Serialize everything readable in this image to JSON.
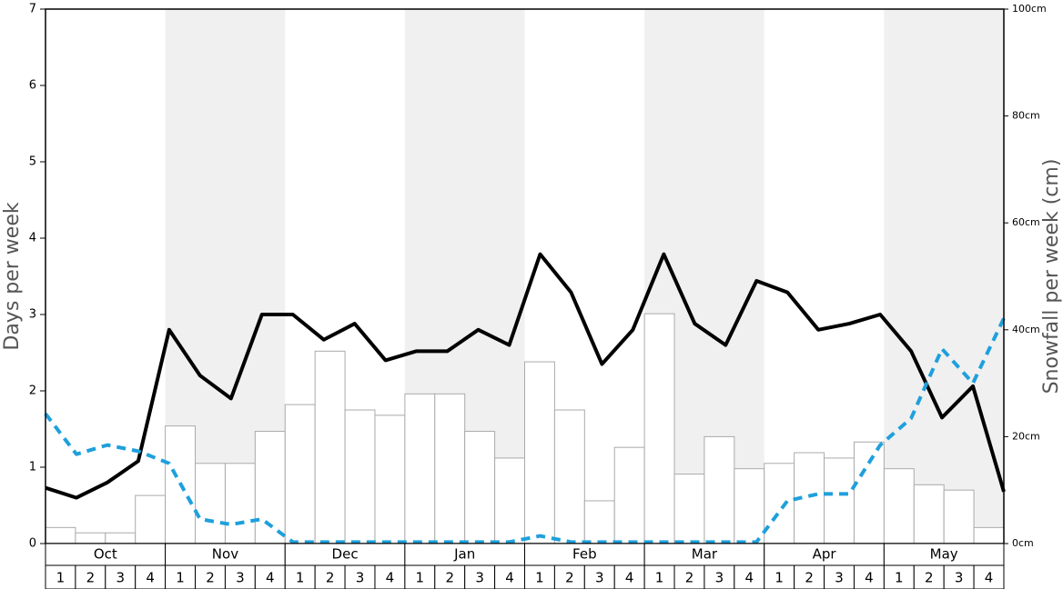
{
  "chart_data": {
    "type": "bar",
    "ylabel": "Days per week",
    "y2label": "Snowfall per week (cm)",
    "months": [
      "Oct",
      "Nov",
      "Dec",
      "Jan",
      "Feb",
      "Mar",
      "Apr",
      "May"
    ],
    "categories": [
      "1",
      "2",
      "3",
      "4",
      "1",
      "2",
      "3",
      "4",
      "1",
      "2",
      "3",
      "4",
      "1",
      "2",
      "3",
      "4",
      "1",
      "2",
      "3",
      "4",
      "1",
      "2",
      "3",
      "4",
      "1",
      "2",
      "3",
      "4",
      "1",
      "2",
      "3",
      "4"
    ],
    "ylim": [
      0,
      7
    ],
    "yticks": [
      0,
      1,
      2,
      3,
      4,
      5,
      6,
      7
    ],
    "y2lim": [
      0,
      100
    ],
    "y2ticks": [
      {
        "value": 0,
        "label": "0cm"
      },
      {
        "value": 20,
        "label": "20cm"
      },
      {
        "value": 40,
        "label": "40cm"
      },
      {
        "value": 60,
        "label": "60cm"
      },
      {
        "value": 80,
        "label": "80cm"
      },
      {
        "value": 100,
        "label": "100cm"
      }
    ],
    "series": [
      {
        "type": "bar",
        "axis": "y2",
        "color": "#ffffff",
        "values": [
          3,
          2,
          2,
          9,
          22,
          15,
          15,
          21,
          26,
          36,
          25,
          24,
          28,
          28,
          21,
          16,
          34,
          25,
          8,
          18,
          43,
          13,
          20,
          14,
          15,
          17,
          16,
          19,
          14,
          11,
          10,
          3
        ]
      },
      {
        "type": "line",
        "color": "#000000",
        "dashed": false,
        "values": [
          0.73,
          0.6,
          0.8,
          1.08,
          2.8,
          2.2,
          1.9,
          3.0,
          3.0,
          2.67,
          2.88,
          2.4,
          2.52,
          2.52,
          2.8,
          2.6,
          3.79,
          3.29,
          2.35,
          2.8,
          3.79,
          2.88,
          2.6,
          3.44,
          3.29,
          2.8,
          2.88,
          3.0,
          2.52,
          1.65,
          2.06,
          0.68
        ]
      },
      {
        "type": "line",
        "color": "#1ea0dc",
        "dashed": true,
        "values": [
          1.7,
          1.17,
          1.29,
          1.21,
          1.05,
          0.32,
          0.25,
          0.32,
          0.02,
          0.02,
          0.02,
          0.02,
          0.02,
          0.02,
          0.02,
          0.02,
          0.1,
          0.02,
          0.02,
          0.02,
          0.02,
          0.02,
          0.02,
          0.02,
          0.56,
          0.65,
          0.65,
          1.29,
          1.64,
          2.55,
          2.1,
          2.95
        ]
      }
    ]
  }
}
